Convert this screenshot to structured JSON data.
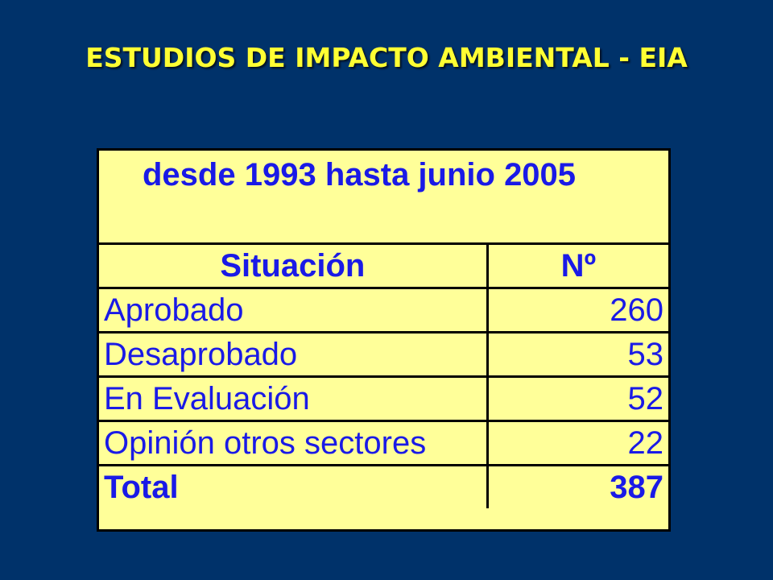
{
  "slide": {
    "title": "ESTUDIOS DE IMPACTO AMBIENTAL - EIA"
  },
  "table": {
    "subtitle": "desde 1993 hasta junio 2005",
    "headers": [
      "Situación",
      "Nº"
    ],
    "rows": [
      {
        "situacion": "Aprobado",
        "numero": "260"
      },
      {
        "situacion": "Desaprobado",
        "numero": "53"
      },
      {
        "situacion": "En Evaluación",
        "numero": "52"
      },
      {
        "situacion": "Opinión otros sectores",
        "numero": "22"
      }
    ],
    "total": {
      "label": "Total",
      "numero": "387"
    }
  },
  "colors": {
    "background": "#00326a",
    "title": "#ffff33",
    "table_fill": "#ffff99",
    "table_text": "#1a1ae6"
  }
}
